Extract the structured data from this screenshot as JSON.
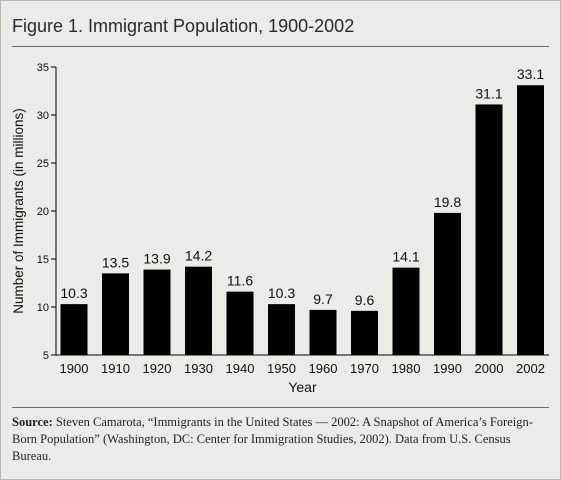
{
  "chart_data": {
    "type": "bar",
    "title": "Figure 1. Immigrant Population, 1900-2002",
    "xlabel": "Year",
    "ylabel": "Number of Immigrants (in millions)",
    "categories": [
      "1900",
      "1910",
      "1920",
      "1930",
      "1940",
      "1950",
      "1960",
      "1970",
      "1980",
      "1990",
      "2000",
      "2002"
    ],
    "values": [
      10.3,
      13.5,
      13.9,
      14.2,
      11.6,
      10.3,
      9.7,
      9.6,
      14.1,
      19.8,
      31.1,
      33.1
    ],
    "data_labels": [
      "10.3",
      "13.5",
      "13.9",
      "14.2",
      "11.6",
      "10.3",
      "9.7",
      "9.6",
      "14.1",
      "19.8",
      "31.1",
      "33.1"
    ],
    "ylim": [
      5,
      35
    ],
    "yticks": [
      5,
      10,
      15,
      20,
      25,
      30,
      35
    ],
    "grid": false,
    "bar_color": "#000000"
  },
  "source": {
    "label": "Source:",
    "text": "Steven Camarota, “Immigrants in the United States — 2002: A Snapshot of America’s Foreign-Born Population” (Washington, DC: Center for Immigration Studies, 2002). Data from U.S. Census Bureau."
  }
}
